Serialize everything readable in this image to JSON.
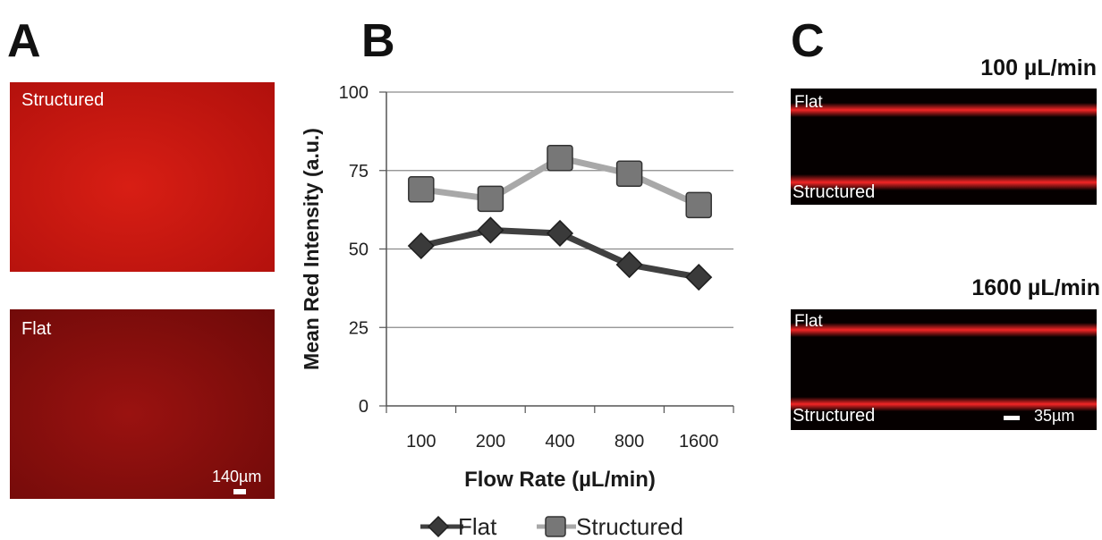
{
  "panels": {
    "a": {
      "letter": "A",
      "images": [
        {
          "label": "Structured",
          "color_center": "#d81e14",
          "color_edge": "#b0100c"
        },
        {
          "label": "Flat",
          "color_center": "#9a1210",
          "color_edge": "#6e0a09"
        }
      ],
      "scale_label": "140µm"
    },
    "b": {
      "letter": "B"
    },
    "c": {
      "letter": "C",
      "images": [
        {
          "rate_label": "100 µL/min",
          "top_label": "Flat",
          "bottom_label": "Structured"
        },
        {
          "rate_label": "1600 µL/min",
          "top_label": "Flat",
          "bottom_label": "Structured"
        }
      ],
      "scale_label": "35µm"
    }
  },
  "chart_data": {
    "type": "line",
    "xlabel": "Flow Rate (µL/min)",
    "ylabel": "Mean Red Intensity (a.u.)",
    "categories": [
      "100",
      "200",
      "400",
      "800",
      "1600"
    ],
    "ylim": [
      0,
      100
    ],
    "yticks": [
      0,
      25,
      50,
      75,
      100
    ],
    "grid": "horizontal",
    "legend_position": "bottom-center",
    "series": [
      {
        "name": "Flat",
        "marker": "diamond",
        "line_color": "#404040",
        "marker_color": "#3a3a3a",
        "values": [
          51,
          56,
          55,
          45,
          41
        ]
      },
      {
        "name": "Structured",
        "marker": "square",
        "line_color": "#a8a8a8",
        "marker_color": "#777777",
        "values": [
          69,
          66,
          79,
          74,
          64
        ]
      }
    ]
  }
}
